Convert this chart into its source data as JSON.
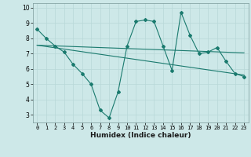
{
  "line1_x": [
    0,
    1,
    2,
    3,
    4,
    5,
    6,
    7,
    8,
    9,
    10,
    11,
    12,
    13,
    14,
    15,
    16,
    17,
    18,
    19,
    20,
    21,
    22,
    23
  ],
  "line1_y": [
    8.6,
    8.0,
    7.5,
    7.1,
    6.3,
    5.7,
    5.0,
    3.3,
    2.8,
    4.5,
    7.5,
    9.1,
    9.2,
    9.1,
    7.5,
    5.9,
    9.7,
    8.2,
    7.0,
    7.1,
    7.4,
    6.5,
    5.7,
    5.5
  ],
  "line2_x": [
    0,
    23
  ],
  "line2_y": [
    7.55,
    7.05
  ],
  "line3_x": [
    0,
    23
  ],
  "line3_y": [
    7.55,
    5.6
  ],
  "line_color": "#1a7a6e",
  "bg_color": "#cde8e8",
  "grid_color": "#b8d8d8",
  "xlabel": "Humidex (Indice chaleur)",
  "xlim": [
    -0.5,
    23.5
  ],
  "ylim": [
    2.5,
    10.3
  ],
  "yticks": [
    3,
    4,
    5,
    6,
    7,
    8,
    9,
    10
  ],
  "xticks": [
    0,
    1,
    2,
    3,
    4,
    5,
    6,
    7,
    8,
    9,
    10,
    11,
    12,
    13,
    14,
    15,
    16,
    17,
    18,
    19,
    20,
    21,
    22,
    23
  ]
}
